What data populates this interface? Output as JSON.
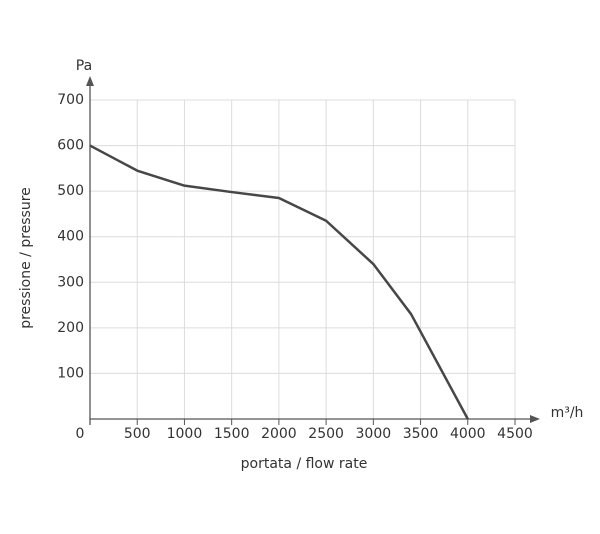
{
  "chart_data": {
    "type": "line",
    "x_label": "portata / flow rate",
    "y_label": "pressione / pressure",
    "x_unit": "m³/h",
    "y_unit": "Pa",
    "x": [
      0,
      500,
      1000,
      1500,
      2000,
      2500,
      3000,
      3400,
      4000
    ],
    "series": [
      {
        "color": "#474747",
        "values": [
          600,
          545,
          512,
          498,
          485,
          435,
          340,
          230,
          0
        ]
      }
    ],
    "xlim": [
      0,
      4500
    ],
    "ylim": [
      0,
      700
    ],
    "xticks": [
      0,
      500,
      1000,
      1500,
      2000,
      2500,
      3000,
      3500,
      4000,
      4500
    ],
    "yticks": [
      100,
      200,
      300,
      400,
      500,
      600,
      700
    ],
    "grid": true
  }
}
